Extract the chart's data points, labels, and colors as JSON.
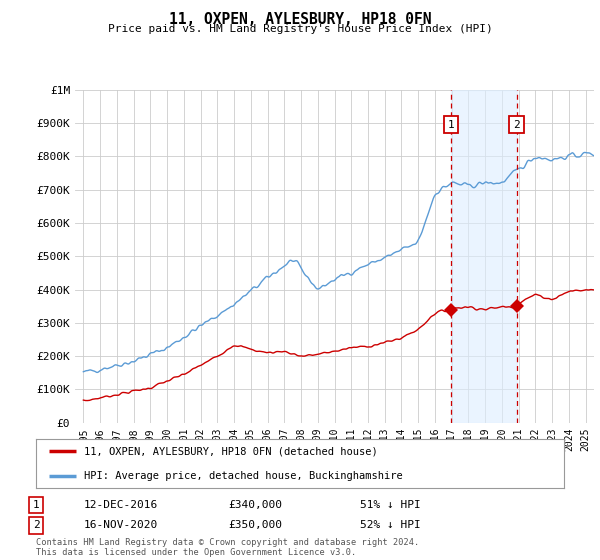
{
  "title": "11, OXPEN, AYLESBURY, HP18 0FN",
  "subtitle": "Price paid vs. HM Land Registry's House Price Index (HPI)",
  "ylabel_ticks": [
    "£0",
    "£100K",
    "£200K",
    "£300K",
    "£400K",
    "£500K",
    "£600K",
    "£700K",
    "£800K",
    "£900K",
    "£1M"
  ],
  "ytick_values": [
    0,
    100000,
    200000,
    300000,
    400000,
    500000,
    600000,
    700000,
    800000,
    900000,
    1000000
  ],
  "ylim": [
    0,
    1000000
  ],
  "xlim_start": 1994.5,
  "xlim_end": 2025.5,
  "hpi_color": "#5b9bd5",
  "hpi_fill_color": "#ddeeff",
  "price_color": "#cc0000",
  "dashed_color": "#cc0000",
  "marker1_x": 2016.96,
  "marker1_y": 340000,
  "marker2_x": 2020.88,
  "marker2_y": 350000,
  "annotation1": {
    "label": "1",
    "date": "12-DEC-2016",
    "price": "£340,000",
    "pct": "51% ↓ HPI"
  },
  "annotation2": {
    "label": "2",
    "date": "16-NOV-2020",
    "price": "£350,000",
    "pct": "52% ↓ HPI"
  },
  "legend_line1": "11, OXPEN, AYLESBURY, HP18 0FN (detached house)",
  "legend_line2": "HPI: Average price, detached house, Buckinghamshire",
  "footer": "Contains HM Land Registry data © Crown copyright and database right 2024.\nThis data is licensed under the Open Government Licence v3.0.",
  "xtick_years": [
    1995,
    1996,
    1997,
    1998,
    1999,
    2000,
    2001,
    2002,
    2003,
    2004,
    2005,
    2006,
    2007,
    2008,
    2009,
    2010,
    2011,
    2012,
    2013,
    2014,
    2015,
    2016,
    2017,
    2018,
    2019,
    2020,
    2021,
    2022,
    2023,
    2024,
    2025
  ],
  "background_color": "#ffffff",
  "grid_color": "#cccccc"
}
